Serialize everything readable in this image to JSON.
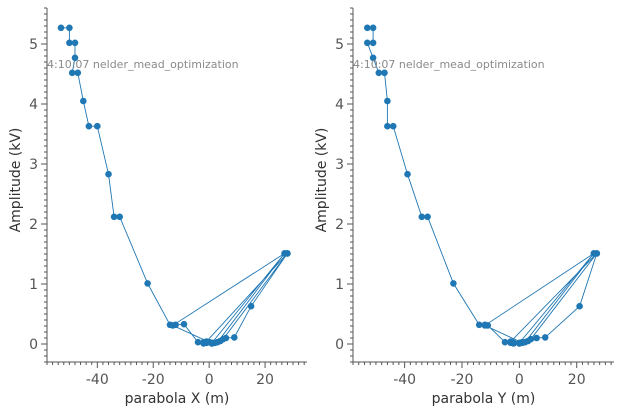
{
  "chart_data": [
    {
      "type": "line",
      "xlabel": "parabola X (m)",
      "ylabel": "Amplitude (kV)",
      "annotation": "4:10:07 nelder_mead_optimization",
      "xlim": [
        -58,
        35
      ],
      "ylim": [
        -0.3,
        5.6
      ],
      "xticks": [
        -40,
        -20,
        0,
        20
      ],
      "yticks": [
        0,
        1,
        2,
        3,
        4,
        5
      ],
      "xtick_labels": [
        "-40",
        "-20",
        "0",
        "20"
      ],
      "ytick_labels": [
        "0",
        "1",
        "2",
        "3",
        "4",
        "5"
      ],
      "grid": false,
      "color": "#1f77b4",
      "points": [
        [
          -53,
          5.27
        ],
        [
          -50,
          5.27
        ],
        [
          -50,
          5.02
        ],
        [
          -48,
          5.02
        ],
        [
          -48,
          4.77
        ],
        [
          -49,
          4.52
        ],
        [
          -47,
          4.52
        ],
        [
          -45,
          4.05
        ],
        [
          -43,
          3.63
        ],
        [
          -40,
          3.63
        ],
        [
          -36,
          2.83
        ],
        [
          -34,
          2.12
        ],
        [
          -32,
          2.12
        ],
        [
          -22,
          1.01
        ],
        [
          -14,
          0.32
        ],
        [
          -12,
          0.32
        ],
        [
          -9,
          0.33
        ],
        [
          -4,
          0.03
        ],
        [
          -2,
          0.01
        ],
        [
          -1,
          0.02
        ],
        [
          0,
          0.03
        ],
        [
          1,
          0.01
        ],
        [
          2,
          0.02
        ],
        [
          3,
          0.03
        ],
        [
          27,
          1.51
        ],
        [
          28,
          1.51
        ],
        [
          -1,
          0.04
        ],
        [
          -2,
          0.03
        ],
        [
          -1,
          0.02
        ],
        [
          0,
          0.03
        ],
        [
          1,
          0.01
        ],
        [
          2,
          0.02
        ],
        [
          4,
          0.05
        ],
        [
          6,
          0.1
        ],
        [
          9,
          0.11
        ],
        [
          15,
          0.63
        ],
        [
          28,
          1.51
        ],
        [
          5,
          0.08
        ],
        [
          1,
          0.02
        ],
        [
          27,
          1.51
        ],
        [
          -13,
          0.31
        ],
        [
          0,
          0.03
        ]
      ]
    },
    {
      "type": "line",
      "xlabel": "parabola Y (m)",
      "ylabel": "Amplitude (kV)",
      "annotation": "4:10:07 nelder_mead_optimization",
      "xlim": [
        -58,
        33
      ],
      "ylim": [
        -0.3,
        5.6
      ],
      "xticks": [
        -40,
        -20,
        0,
        20
      ],
      "yticks": [
        0,
        1,
        2,
        3,
        4,
        5
      ],
      "xtick_labels": [
        "-40",
        "-20",
        "0",
        "20"
      ],
      "ytick_labels": [
        "0",
        "1",
        "2",
        "3",
        "4",
        "5"
      ],
      "grid": false,
      "color": "#1f77b4",
      "points": [
        [
          -53,
          5.27
        ],
        [
          -51,
          5.27
        ],
        [
          -51,
          5.02
        ],
        [
          -53,
          5.02
        ],
        [
          -51,
          4.77
        ],
        [
          -49,
          4.52
        ],
        [
          -47,
          4.52
        ],
        [
          -46,
          4.05
        ],
        [
          -46,
          3.63
        ],
        [
          -44,
          3.63
        ],
        [
          -39,
          2.83
        ],
        [
          -34,
          2.12
        ],
        [
          -32,
          2.12
        ],
        [
          -23,
          1.01
        ],
        [
          -14,
          0.32
        ],
        [
          -12,
          0.32
        ],
        [
          -11,
          0.31
        ],
        [
          -5,
          0.03
        ],
        [
          -3,
          0.02
        ],
        [
          -2,
          0.01
        ],
        [
          0,
          0.01
        ],
        [
          1,
          0.02
        ],
        [
          2,
          0.03
        ],
        [
          26,
          1.51
        ],
        [
          27,
          1.51
        ],
        [
          -3,
          0.04
        ],
        [
          -2,
          0.02
        ],
        [
          0,
          0.01
        ],
        [
          1,
          0.03
        ],
        [
          3,
          0.05
        ],
        [
          6,
          0.1
        ],
        [
          9,
          0.11
        ],
        [
          21,
          0.63
        ],
        [
          27,
          1.51
        ],
        [
          4,
          0.08
        ],
        [
          0,
          0.02
        ],
        [
          26,
          1.51
        ],
        [
          -12,
          0.31
        ],
        [
          1,
          0.02
        ]
      ]
    }
  ]
}
